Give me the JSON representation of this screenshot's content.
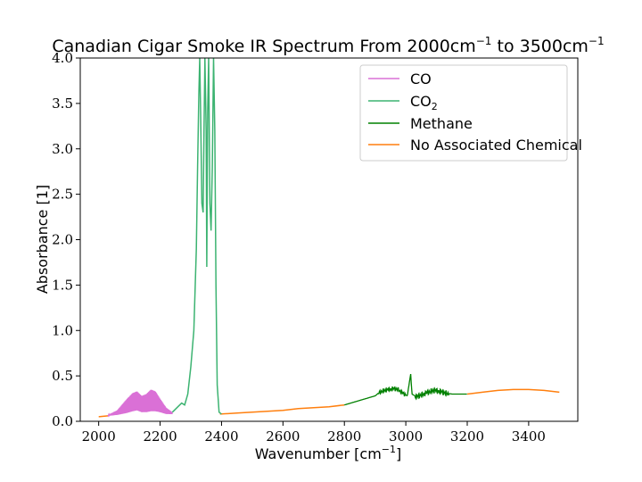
{
  "chart_data": {
    "type": "line",
    "title": "Canadian Cigar Smoke IR Spectrum From 2000cm",
    "title_sup1": "−1",
    "title_mid": " to 3500cm",
    "title_sup2": "−1",
    "xlabel": "Wavenumber [cm",
    "xlabel_sup": "−1",
    "xlabel_end": "]",
    "ylabel": "Absorbance [1]",
    "xlim": [
      1940,
      3560
    ],
    "ylim": [
      0,
      4.0
    ],
    "xticks": [
      2000,
      2200,
      2400,
      2600,
      2800,
      3000,
      3200,
      3400
    ],
    "yticks": [
      0.0,
      0.5,
      1.0,
      1.5,
      2.0,
      2.5,
      3.0,
      3.5,
      4.0
    ],
    "xtick_labels": [
      "2000",
      "2200",
      "2400",
      "2600",
      "2800",
      "3000",
      "3200",
      "3400"
    ],
    "ytick_labels": [
      "0.0",
      "0.5",
      "1.0",
      "1.5",
      "2.0",
      "2.5",
      "3.0",
      "3.5",
      "4.0"
    ],
    "legend_position": "upper-right",
    "grid": false,
    "series": [
      {
        "name": "CO",
        "color": "#da70d6",
        "envelope_upper": [
          [
            2030,
            0.07
          ],
          [
            2060,
            0.12
          ],
          [
            2090,
            0.24
          ],
          [
            2110,
            0.31
          ],
          [
            2125,
            0.33
          ],
          [
            2140,
            0.28
          ],
          [
            2155,
            0.3
          ],
          [
            2170,
            0.35
          ],
          [
            2185,
            0.33
          ],
          [
            2200,
            0.25
          ],
          [
            2220,
            0.15
          ],
          [
            2240,
            0.1
          ]
        ],
        "envelope_lower": [
          [
            2030,
            0.06
          ],
          [
            2060,
            0.07
          ],
          [
            2090,
            0.09
          ],
          [
            2110,
            0.11
          ],
          [
            2125,
            0.12
          ],
          [
            2140,
            0.1
          ],
          [
            2155,
            0.1
          ],
          [
            2170,
            0.11
          ],
          [
            2185,
            0.11
          ],
          [
            2200,
            0.1
          ],
          [
            2220,
            0.08
          ],
          [
            2240,
            0.08
          ]
        ]
      },
      {
        "name": "CO",
        "name_sub": "2",
        "color": "#3cb371",
        "points": [
          [
            2240,
            0.1
          ],
          [
            2255,
            0.15
          ],
          [
            2270,
            0.2
          ],
          [
            2280,
            0.18
          ],
          [
            2290,
            0.3
          ],
          [
            2300,
            0.6
          ],
          [
            2310,
            1.0
          ],
          [
            2318,
            1.9
          ],
          [
            2322,
            2.8
          ],
          [
            2326,
            3.6
          ],
          [
            2329,
            4.0
          ],
          [
            2332,
            3.4
          ],
          [
            2336,
            2.4
          ],
          [
            2340,
            2.3
          ],
          [
            2343,
            3.2
          ],
          [
            2346,
            4.0
          ],
          [
            2350,
            3.2
          ],
          [
            2352,
            1.7
          ],
          [
            2355,
            3.4
          ],
          [
            2358,
            4.0
          ],
          [
            2362,
            2.4
          ],
          [
            2366,
            2.1
          ],
          [
            2370,
            2.8
          ],
          [
            2374,
            4.0
          ],
          [
            2378,
            3.2
          ],
          [
            2382,
            1.5
          ],
          [
            2386,
            0.4
          ],
          [
            2392,
            0.1
          ],
          [
            2400,
            0.08
          ]
        ]
      },
      {
        "name": "Methane",
        "color": "#008000",
        "points": [
          [
            2800,
            0.18
          ],
          [
            2840,
            0.22
          ],
          [
            2880,
            0.26
          ],
          [
            2900,
            0.28
          ],
          [
            2915,
            0.32
          ],
          [
            2930,
            0.34
          ],
          [
            2945,
            0.35
          ],
          [
            2960,
            0.36
          ],
          [
            2975,
            0.35
          ],
          [
            2990,
            0.31
          ],
          [
            3005,
            0.28
          ],
          [
            3012,
            0.44
          ],
          [
            3016,
            0.52
          ],
          [
            3020,
            0.3
          ],
          [
            3035,
            0.27
          ],
          [
            3050,
            0.29
          ],
          [
            3065,
            0.31
          ],
          [
            3080,
            0.33
          ],
          [
            3095,
            0.34
          ],
          [
            3110,
            0.33
          ],
          [
            3130,
            0.31
          ],
          [
            3150,
            0.3
          ],
          [
            3175,
            0.3
          ],
          [
            3200,
            0.3
          ]
        ],
        "oscillation": [
          [
            2910,
            3000,
            0.04
          ],
          [
            3030,
            3140,
            0.05
          ]
        ]
      },
      {
        "name": "No Associated Chemical",
        "color": "#ff7f0e",
        "points": [
          [
            2000,
            0.05
          ],
          [
            2030,
            0.06
          ]
        ],
        "segments": [
          [
            [
              2000,
              0.05
            ],
            [
              2030,
              0.06
            ]
          ],
          [
            [
              2395,
              0.08
            ],
            [
              2450,
              0.09
            ],
            [
              2500,
              0.1
            ],
            [
              2550,
              0.11
            ],
            [
              2600,
              0.12
            ],
            [
              2650,
              0.14
            ],
            [
              2700,
              0.15
            ],
            [
              2750,
              0.16
            ],
            [
              2800,
              0.18
            ]
          ],
          [
            [
              3200,
              0.3
            ],
            [
              3250,
              0.32
            ],
            [
              3300,
              0.34
            ],
            [
              3350,
              0.35
            ],
            [
              3400,
              0.35
            ],
            [
              3450,
              0.34
            ],
            [
              3500,
              0.32
            ]
          ]
        ]
      }
    ]
  }
}
